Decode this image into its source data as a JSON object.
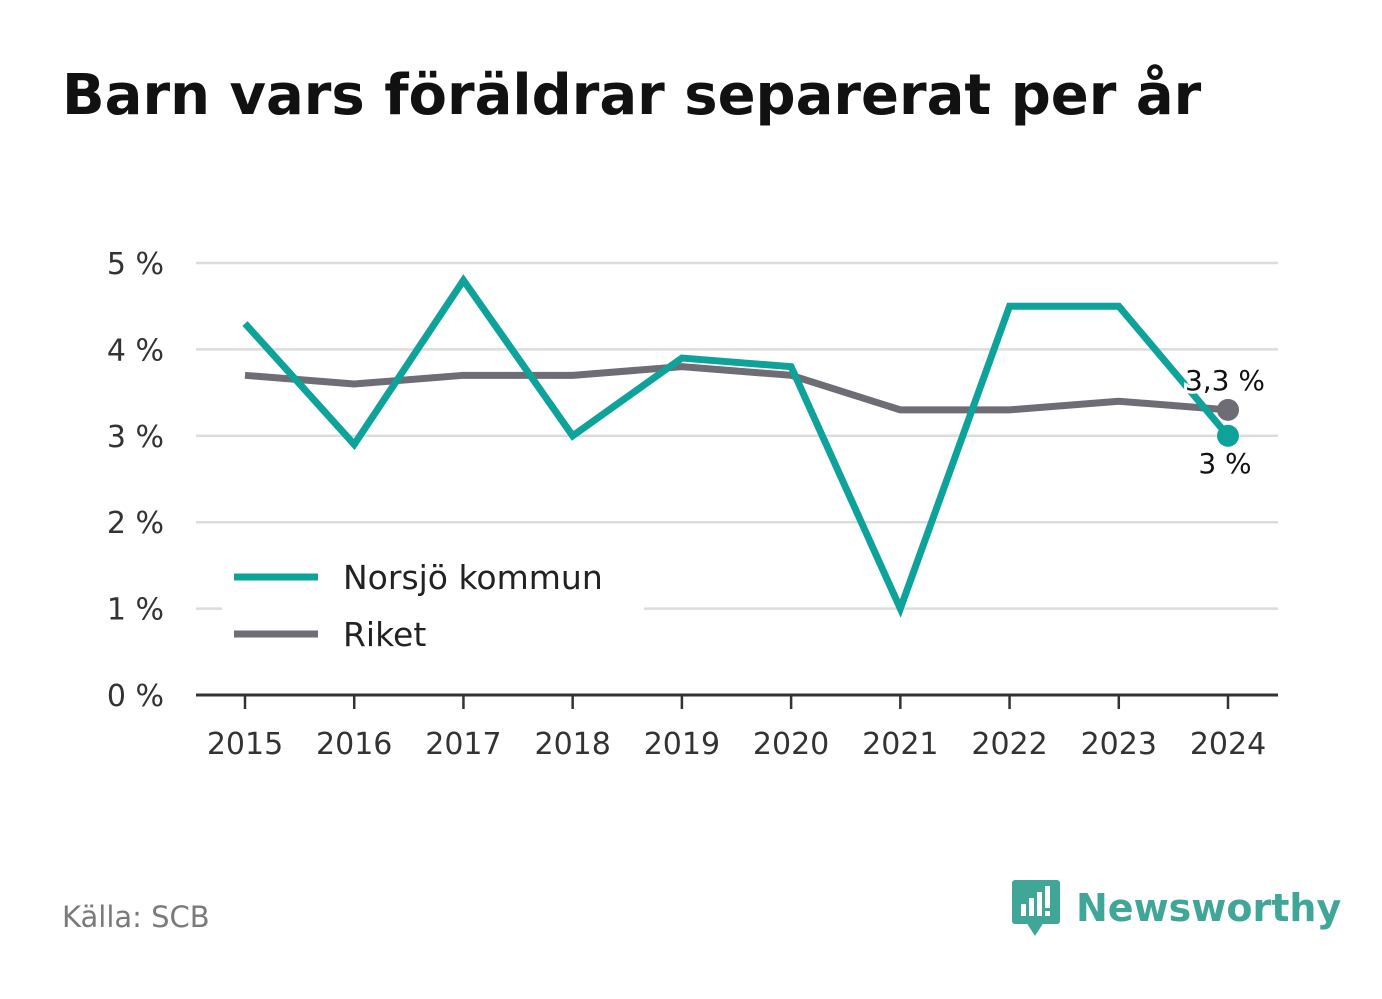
{
  "title": "Barn vars föräldrar separerat per år",
  "source": "Källa: SCB",
  "brand": "Newsworthy",
  "colors": {
    "norsjo": "#0ea39a",
    "riket": "#6e6c74",
    "grid": "#dcdcdc",
    "axis": "#333333",
    "brand": "#3fa698"
  },
  "chart_data": {
    "type": "line",
    "title": "Barn vars föräldrar separerat per år",
    "x": [
      "2015",
      "2016",
      "2017",
      "2018",
      "2019",
      "2020",
      "2021",
      "2022",
      "2023",
      "2024"
    ],
    "ylim": [
      0,
      5
    ],
    "yticks": [
      "0 %",
      "1 %",
      "2 %",
      "3 %",
      "4 %",
      "5 %"
    ],
    "grid": true,
    "legend_position": "bottom-left",
    "series": [
      {
        "name": "Norsjö kommun",
        "color": "#0ea39a",
        "values": [
          4.3,
          2.9,
          4.8,
          3.0,
          3.9,
          3.8,
          1.0,
          4.5,
          4.5,
          3.0
        ],
        "end_label": "3 %"
      },
      {
        "name": "Riket",
        "color": "#6e6c74",
        "values": [
          3.7,
          3.6,
          3.7,
          3.7,
          3.8,
          3.7,
          3.3,
          3.3,
          3.4,
          3.3
        ],
        "end_label": "3,3 %"
      }
    ]
  }
}
